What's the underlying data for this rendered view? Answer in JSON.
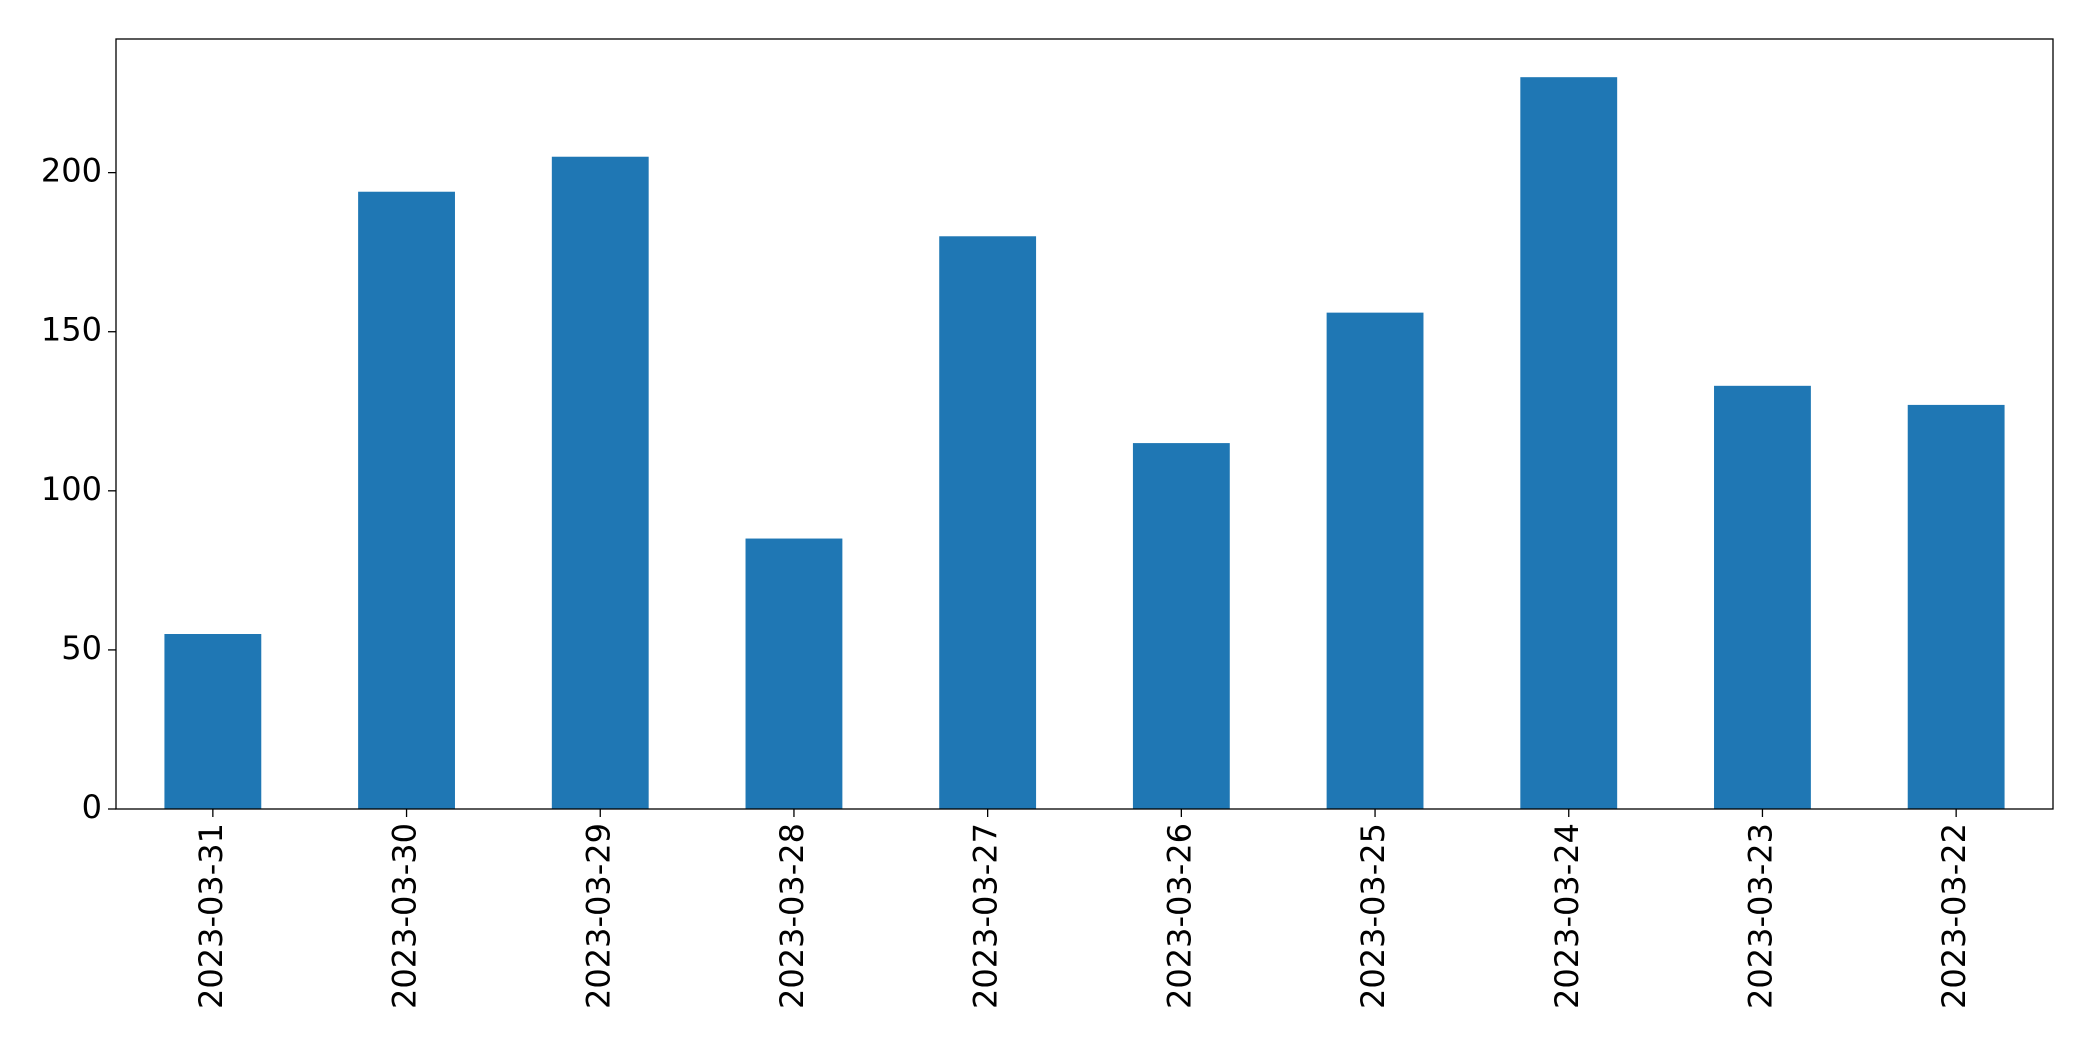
{
  "chart_data": {
    "type": "bar",
    "categories": [
      "2023-03-31",
      "2023-03-30",
      "2023-03-29",
      "2023-03-28",
      "2023-03-27",
      "2023-03-26",
      "2023-03-25",
      "2023-03-24",
      "2023-03-23",
      "2023-03-22"
    ],
    "values": [
      55,
      194,
      205,
      85,
      180,
      115,
      156,
      230,
      133,
      127
    ],
    "color": "#1f77b4",
    "ylim": [
      0,
      242
    ],
    "yticks": [
      0,
      50,
      100,
      150,
      200
    ],
    "grid": false
  }
}
